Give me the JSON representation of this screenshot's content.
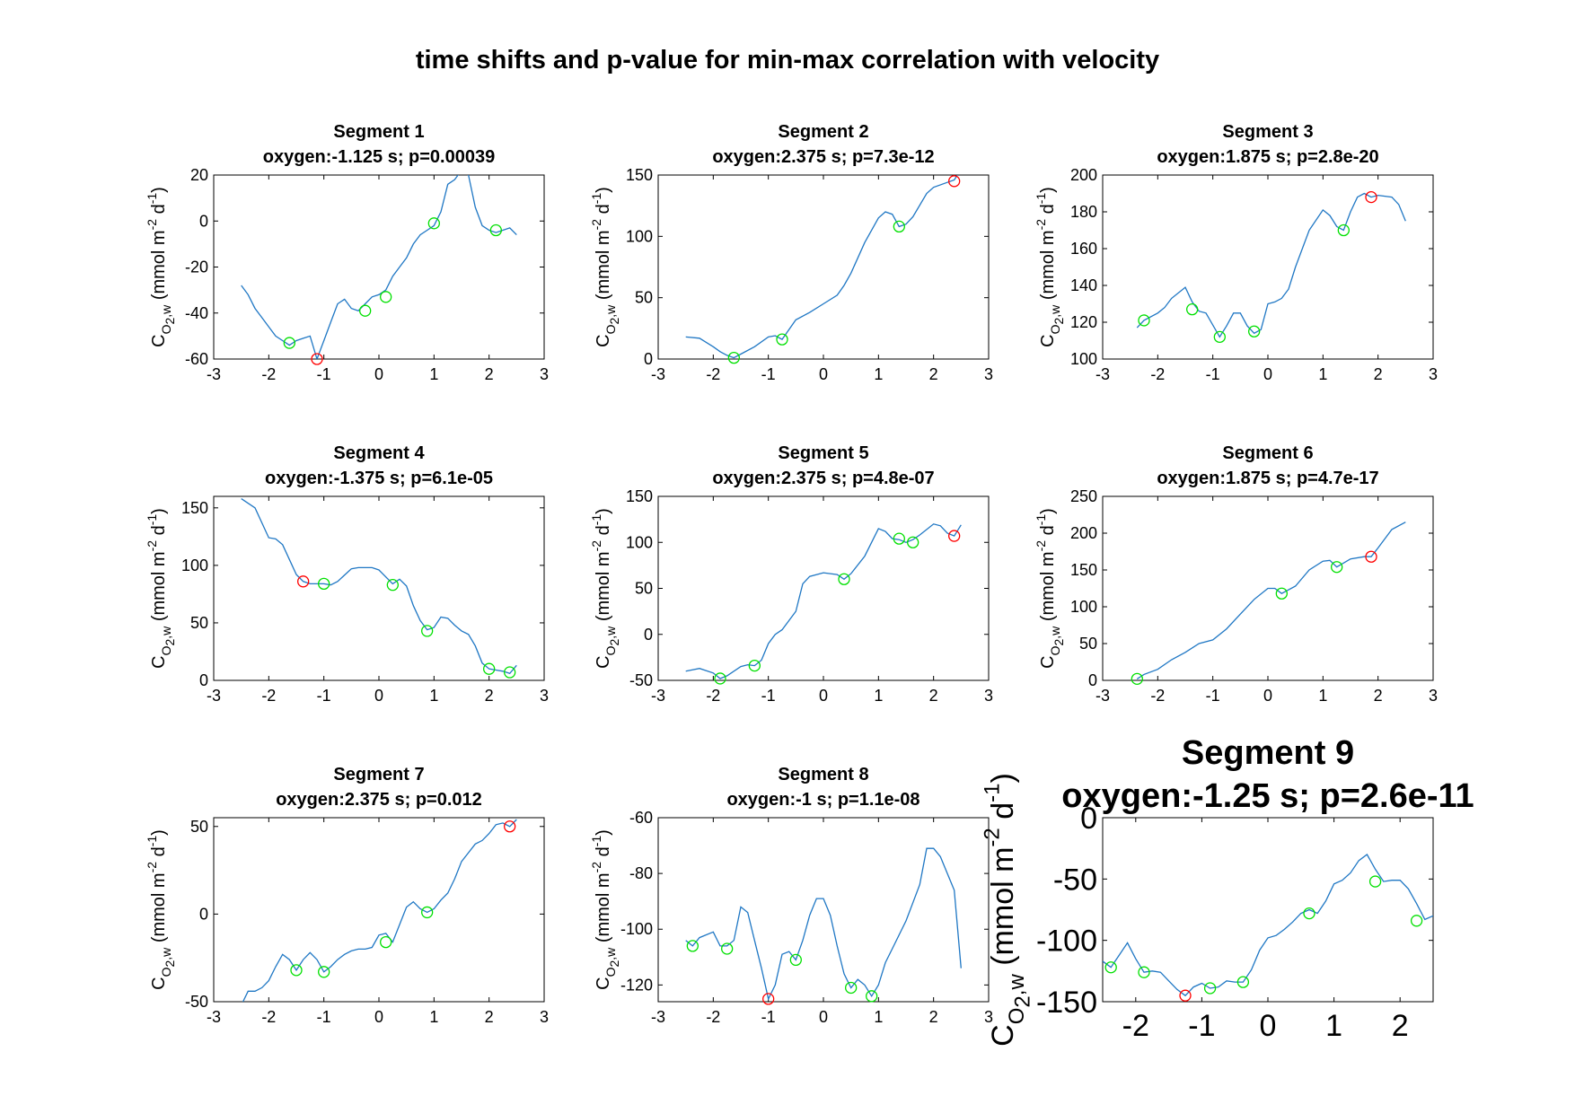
{
  "figure_title": "time shifts and p-value for min-max correlation with velocity",
  "colors": {
    "line": "#1f77c4",
    "marker_green": "#00e000",
    "marker_red": "#ff0000",
    "axes": "#000000"
  },
  "ylabel": {
    "main": "C",
    "sub": "O",
    "subsub": "2",
    "subtail": ",w",
    "units": " (mmol m",
    "exp1": "-2",
    "mid": " d",
    "exp2": "-1",
    "close": ")"
  },
  "chart_data": [
    {
      "type": "line",
      "title": "Segment 1",
      "subtitle": "oxygen:-1.125 s; p=0.00039",
      "xlim": [
        -3,
        3
      ],
      "ylim": [
        -60,
        20
      ],
      "xticks": [
        "-3",
        "-2",
        "-1",
        "0",
        "1",
        "2",
        "3"
      ],
      "yticks": [
        "-60",
        "-40",
        "-20",
        "0",
        "20"
      ],
      "x": [
        -2.5,
        -2.375,
        -2.25,
        -2.125,
        -2,
        -1.875,
        -1.75,
        -1.625,
        -1.5,
        -1.375,
        -1.25,
        -1.125,
        -1,
        -0.875,
        -0.75,
        -0.625,
        -0.5,
        -0.375,
        -0.25,
        -0.125,
        0,
        0.125,
        0.25,
        0.375,
        0.5,
        0.625,
        0.75,
        0.875,
        1,
        1.125,
        1.25,
        1.375,
        1.5,
        1.625,
        1.75,
        1.875,
        2,
        2.125,
        2.25,
        2.375,
        2.5
      ],
      "y": [
        -28,
        -32,
        -38,
        -42,
        -46,
        -50,
        -52,
        -54,
        -52,
        -51,
        -50,
        -60,
        -52,
        -44,
        -36,
        -34,
        -38,
        -39,
        -36,
        -33,
        -32,
        -30,
        -24,
        -20,
        -16,
        -10,
        -6,
        -4,
        -2,
        4,
        16,
        18,
        22,
        20,
        6,
        -2,
        -4,
        -5,
        -4,
        -3,
        -6
      ],
      "green_x": [
        -1.625,
        -0.25,
        0.125,
        1,
        2.125
      ],
      "green_y": [
        -53,
        -39,
        -33,
        -1,
        -4
      ],
      "red_x": [
        -1.125
      ],
      "red_y": [
        -60
      ]
    },
    {
      "type": "line",
      "title": "Segment 2",
      "subtitle": "oxygen:2.375 s; p=7.3e-12",
      "xlim": [
        -3,
        3
      ],
      "ylim": [
        0,
        150
      ],
      "xticks": [
        "-3",
        "-2",
        "-1",
        "0",
        "1",
        "2",
        "3"
      ],
      "yticks": [
        "0",
        "50",
        "100",
        "150"
      ],
      "x": [
        -2.5,
        -2.25,
        -2,
        -1.875,
        -1.75,
        -1.625,
        -1.5,
        -1.25,
        -1,
        -0.875,
        -0.75,
        -0.5,
        -0.25,
        0,
        0.25,
        0.375,
        0.5,
        0.75,
        1,
        1.125,
        1.25,
        1.375,
        1.5,
        1.625,
        1.875,
        2,
        2.25,
        2.375,
        2.5
      ],
      "y": [
        18,
        17,
        10,
        6,
        3,
        1,
        4,
        10,
        18,
        19,
        16,
        32,
        38,
        45,
        52,
        60,
        70,
        95,
        115,
        120,
        118,
        108,
        110,
        116,
        135,
        140,
        144,
        146,
        155
      ],
      "green_x": [
        -1.625,
        -0.75,
        1.375
      ],
      "green_y": [
        1,
        16,
        108
      ],
      "red_x": [
        2.375
      ],
      "red_y": [
        145
      ]
    },
    {
      "type": "line",
      "title": "Segment 3",
      "subtitle": "oxygen:1.875 s; p=2.8e-20",
      "xlim": [
        -3,
        3
      ],
      "ylim": [
        100,
        200
      ],
      "xticks": [
        "-3",
        "-2",
        "-1",
        "0",
        "1",
        "2",
        "3"
      ],
      "yticks": [
        "100",
        "120",
        "140",
        "160",
        "180",
        "200"
      ],
      "x": [
        -2.375,
        -2.25,
        -2,
        -1.875,
        -1.75,
        -1.5,
        -1.375,
        -1.25,
        -1.125,
        -0.875,
        -0.75,
        -0.625,
        -0.5,
        -0.375,
        -0.25,
        -0.125,
        0,
        0.125,
        0.25,
        0.375,
        0.5,
        0.75,
        1,
        1.125,
        1.25,
        1.375,
        1.5,
        1.625,
        1.75,
        1.875,
        2,
        2.25,
        2.375,
        2.5
      ],
      "y": [
        117,
        121,
        125,
        128,
        133,
        139,
        131,
        126,
        125,
        112,
        118,
        125,
        125,
        118,
        114,
        116,
        130,
        131,
        133,
        138,
        150,
        170,
        181,
        178,
        172,
        170,
        180,
        188,
        190,
        188,
        189,
        188,
        184,
        175
      ],
      "green_x": [
        -2.25,
        -1.375,
        -0.875,
        -0.25,
        1.375
      ],
      "green_y": [
        121,
        127,
        112,
        115,
        170
      ],
      "red_x": [
        1.875
      ],
      "red_y": [
        188
      ]
    },
    {
      "type": "line",
      "title": "Segment 4",
      "subtitle": "oxygen:-1.375 s; p=6.1e-05",
      "xlim": [
        -3,
        3
      ],
      "ylim": [
        0,
        160
      ],
      "xticks": [
        "-3",
        "-2",
        "-1",
        "0",
        "1",
        "2",
        "3"
      ],
      "yticks": [
        "0",
        "50",
        "100",
        "150"
      ],
      "x": [
        -2.5,
        -2.25,
        -2,
        -1.875,
        -1.75,
        -1.5,
        -1.375,
        -1.25,
        -1,
        -0.875,
        -0.75,
        -0.5,
        -0.375,
        -0.25,
        -0.125,
        0,
        0.25,
        0.375,
        0.5,
        0.625,
        0.75,
        0.875,
        1,
        1.125,
        1.25,
        1.375,
        1.5,
        1.625,
        1.75,
        1.875,
        2,
        2.125,
        2.25,
        2.375,
        2.5
      ],
      "y": [
        158,
        150,
        124,
        123,
        118,
        92,
        86,
        84,
        84,
        83,
        86,
        97,
        98,
        98,
        98,
        96,
        84,
        88,
        82,
        65,
        52,
        44,
        46,
        55,
        54,
        48,
        43,
        40,
        30,
        15,
        10,
        9,
        8,
        6,
        13
      ],
      "green_x": [
        -1,
        0.25,
        0.875,
        2,
        2.375
      ],
      "green_y": [
        84,
        83,
        43,
        10,
        7
      ],
      "red_x": [
        -1.375
      ],
      "red_y": [
        86
      ]
    },
    {
      "type": "line",
      "title": "Segment 5",
      "subtitle": "oxygen:2.375 s; p=4.8e-07",
      "xlim": [
        -3,
        3
      ],
      "ylim": [
        -50,
        150
      ],
      "xticks": [
        "-3",
        "-2",
        "-1",
        "0",
        "1",
        "2",
        "3"
      ],
      "yticks": [
        "-50",
        "0",
        "50",
        "100",
        "150"
      ],
      "x": [
        -2.5,
        -2.25,
        -2,
        -1.875,
        -1.75,
        -1.5,
        -1.375,
        -1.25,
        -1.125,
        -1,
        -0.875,
        -0.75,
        -0.5,
        -0.375,
        -0.25,
        0,
        0.25,
        0.375,
        0.5,
        0.75,
        1,
        1.125,
        1.25,
        1.375,
        1.5,
        1.625,
        1.75,
        2,
        2.125,
        2.25,
        2.375,
        2.5
      ],
      "y": [
        -40,
        -37,
        -42,
        -48,
        -45,
        -35,
        -33,
        -34,
        -28,
        -10,
        0,
        5,
        25,
        55,
        63,
        67,
        65,
        60,
        66,
        85,
        115,
        112,
        104,
        103,
        100,
        103,
        108,
        120,
        118,
        110,
        107,
        119
      ],
      "green_x": [
        -1.875,
        -1.25,
        0.375,
        1.375,
        1.625
      ],
      "green_y": [
        -48,
        -34,
        60,
        104,
        100
      ],
      "red_x": [
        2.375
      ],
      "red_y": [
        107
      ]
    },
    {
      "type": "line",
      "title": "Segment 6",
      "subtitle": "oxygen:1.875 s; p=4.7e-17",
      "xlim": [
        -3,
        3
      ],
      "ylim": [
        0,
        250
      ],
      "xticks": [
        "-3",
        "-2",
        "-1",
        "0",
        "1",
        "2",
        "3"
      ],
      "yticks": [
        "0",
        "50",
        "100",
        "150",
        "200",
        "250"
      ],
      "x": [
        -2.375,
        -2.25,
        -2,
        -1.75,
        -1.5,
        -1.25,
        -1,
        -0.75,
        -0.5,
        -0.25,
        0,
        0.125,
        0.25,
        0.5,
        0.75,
        1,
        1.125,
        1.25,
        1.5,
        1.75,
        1.875,
        2,
        2.25,
        2.5
      ],
      "y": [
        2,
        8,
        15,
        28,
        38,
        50,
        55,
        70,
        90,
        110,
        125,
        125,
        118,
        128,
        150,
        162,
        163,
        154,
        165,
        168,
        168,
        180,
        205,
        215
      ],
      "green_x": [
        -2.375,
        0.25,
        1.25
      ],
      "green_y": [
        2,
        118,
        154
      ],
      "red_x": [
        1.875
      ],
      "red_y": [
        168
      ]
    },
    {
      "type": "line",
      "title": "Segment 7",
      "subtitle": "oxygen:2.375 s; p=0.012",
      "xlim": [
        -3,
        3
      ],
      "ylim": [
        -50,
        55
      ],
      "xticks": [
        "-3",
        "-2",
        "-1",
        "0",
        "1",
        "2",
        "3"
      ],
      "yticks": [
        "-50",
        "0",
        "50"
      ],
      "x": [
        -2.5,
        -2.375,
        -2.25,
        -2.125,
        -2,
        -1.875,
        -1.75,
        -1.625,
        -1.5,
        -1.375,
        -1.25,
        -1.125,
        -1,
        -0.875,
        -0.75,
        -0.625,
        -0.5,
        -0.375,
        -0.25,
        -0.125,
        0,
        0.125,
        0.25,
        0.375,
        0.5,
        0.625,
        0.75,
        0.875,
        1,
        1.125,
        1.25,
        1.375,
        1.5,
        1.625,
        1.75,
        1.875,
        2,
        2.125,
        2.25,
        2.375,
        2.5
      ],
      "y": [
        -52,
        -44,
        -44,
        -42,
        -38,
        -30,
        -23,
        -26,
        -32,
        -26,
        -22,
        -26,
        -33,
        -30,
        -26,
        -23,
        -21,
        -20,
        -20,
        -19,
        -12,
        -11,
        -16,
        -6,
        4,
        7,
        3,
        1,
        3,
        8,
        12,
        20,
        30,
        35,
        40,
        42,
        46,
        51,
        52,
        50,
        54
      ],
      "green_x": [
        -1.5,
        -1,
        0.125,
        0.875
      ],
      "green_y": [
        -32,
        -33,
        -16,
        1
      ],
      "red_x": [
        2.375
      ],
      "red_y": [
        50
      ]
    },
    {
      "type": "line",
      "title": "Segment 8",
      "subtitle": "oxygen:-1 s; p=1.1e-08",
      "xlim": [
        -3,
        3
      ],
      "ylim": [
        -126,
        -60
      ],
      "xticks": [
        "-3",
        "-2",
        "-1",
        "0",
        "1",
        "2",
        "3"
      ],
      "yticks": [
        "-60",
        "-80",
        "-100",
        "-120"
      ],
      "x": [
        -2.5,
        -2.375,
        -2.25,
        -2,
        -1.875,
        -1.75,
        -1.625,
        -1.5,
        -1.375,
        -1.25,
        -1.125,
        -1,
        -0.875,
        -0.75,
        -0.625,
        -0.5,
        -0.375,
        -0.25,
        -0.125,
        0,
        0.125,
        0.25,
        0.375,
        0.5,
        0.625,
        0.75,
        0.875,
        1,
        1.125,
        1.25,
        1.5,
        1.75,
        1.875,
        2,
        2.125,
        2.25,
        2.375,
        2.5
      ],
      "y": [
        -104,
        -106,
        -103,
        -101,
        -106,
        -106,
        -104,
        -92,
        -94,
        -104,
        -114,
        -125,
        -120,
        -109,
        -108,
        -111,
        -104,
        -95,
        -89,
        -89,
        -95,
        -106,
        -116,
        -121,
        -118,
        -120,
        -124,
        -120,
        -112,
        -107,
        -97,
        -84,
        -71,
        -71,
        -74,
        -80,
        -86,
        -114
      ],
      "green_x": [
        -2.375,
        -1.75,
        -0.5,
        0.5,
        0.875
      ],
      "green_y": [
        -106,
        -107,
        -111,
        -121,
        -124
      ],
      "red_x": [
        -1
      ],
      "red_y": [
        -125
      ]
    },
    {
      "type": "line",
      "title": "Segment 9",
      "subtitle": "oxygen:-1.25 s; p=2.6e-11",
      "xlim": [
        -2.5,
        2.5
      ],
      "ylim": [
        -150,
        0
      ],
      "xticks": [
        "-2",
        "-1",
        "0",
        "1",
        "2"
      ],
      "yticks": [
        "0",
        "-50",
        "-100",
        "-150"
      ],
      "x": [
        -2.5,
        -2.375,
        -2.25,
        -2.125,
        -2,
        -1.875,
        -1.75,
        -1.625,
        -1.5,
        -1.375,
        -1.25,
        -1.125,
        -1,
        -0.875,
        -0.75,
        -0.625,
        -0.5,
        -0.375,
        -0.25,
        -0.125,
        0,
        0.125,
        0.25,
        0.375,
        0.5,
        0.625,
        0.75,
        0.875,
        1,
        1.125,
        1.25,
        1.375,
        1.5,
        1.625,
        1.75,
        1.875,
        2,
        2.125,
        2.25,
        2.375,
        2.5
      ],
      "y": [
        -117,
        -122,
        -112,
        -102,
        -115,
        -126,
        -125,
        -126,
        -133,
        -140,
        -145,
        -138,
        -135,
        -139,
        -138,
        -133,
        -134,
        -134,
        -124,
        -108,
        -98,
        -96,
        -91,
        -85,
        -78,
        -75,
        -78,
        -68,
        -54,
        -51,
        -45,
        -35,
        -30,
        -42,
        -52,
        -51,
        -51,
        -58,
        -70,
        -83,
        -80
      ],
      "green_x": [
        -2.375,
        -1.875,
        -0.875,
        -0.375,
        0.625,
        1.625,
        2.25
      ],
      "green_y": [
        -122,
        -126,
        -139,
        -134,
        -78,
        -52,
        -84
      ],
      "red_x": [
        -1.25
      ],
      "red_y": [
        -145
      ]
    }
  ]
}
